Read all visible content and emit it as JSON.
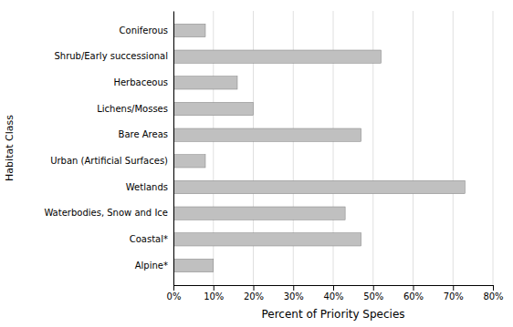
{
  "chart_data": {
    "type": "bar",
    "orientation": "horizontal",
    "categories": [
      "Coniferous",
      "Shrub/Early successional",
      "Herbaceous",
      "Lichens/Mosses",
      "Bare Areas",
      "Urban (Artificial Surfaces)",
      "Wetlands",
      "Waterbodies, Snow and Ice",
      "Coastal*",
      "Alpine*"
    ],
    "values": [
      0.08,
      0.52,
      0.16,
      0.2,
      0.47,
      0.08,
      0.73,
      0.43,
      0.47,
      0.1
    ],
    "color": "#c0c0c0",
    "xlabel": "Percent of Priority Species",
    "ylabel": "Habitat Class",
    "xlim": [
      0,
      0.8
    ],
    "xticks": [
      {
        "value": 0.0,
        "label": "0%"
      },
      {
        "value": 0.1,
        "label": "10%"
      },
      {
        "value": 0.2,
        "label": "20%"
      },
      {
        "value": 0.3,
        "label": "30%"
      },
      {
        "value": 0.4,
        "label": "40%"
      },
      {
        "value": 0.5,
        "label": "50%"
      },
      {
        "value": 0.6,
        "label": "60%"
      },
      {
        "value": 0.7,
        "label": "70%"
      },
      {
        "value": 0.8,
        "label": "80%"
      }
    ],
    "grid": true
  }
}
